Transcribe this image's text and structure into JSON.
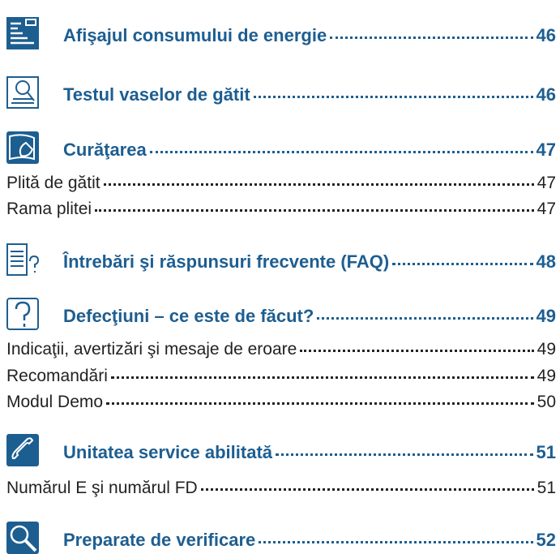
{
  "sections": [
    {
      "title": "Afişajul consumului de energie",
      "page": 46,
      "items": []
    },
    {
      "title": "Testul vaselor de gătit",
      "page": 46,
      "items": []
    },
    {
      "title": "Curăţarea",
      "page": 47,
      "items": [
        {
          "title": "Plită de gătit",
          "page": 47
        },
        {
          "title": "Rama plitei",
          "page": 47
        }
      ]
    },
    {
      "title": "Întrebări şi răspunsuri frecvente (FAQ)",
      "page": 48,
      "items": []
    },
    {
      "title": "Defecţiuni – ce este de făcut?",
      "page": 49,
      "items": [
        {
          "title": "Indicaţii, avertizări şi mesaje de eroare",
          "page": 49
        },
        {
          "title": "Recomandări",
          "page": 49
        },
        {
          "title": "Modul Demo",
          "page": 50
        }
      ]
    },
    {
      "title": "Unitatea service abilitată",
      "page": 51,
      "items": [
        {
          "title": "Numărul E şi numărul FD",
          "page": 51
        }
      ]
    },
    {
      "title": "Preparate de verificare",
      "page": 52,
      "items": []
    }
  ]
}
